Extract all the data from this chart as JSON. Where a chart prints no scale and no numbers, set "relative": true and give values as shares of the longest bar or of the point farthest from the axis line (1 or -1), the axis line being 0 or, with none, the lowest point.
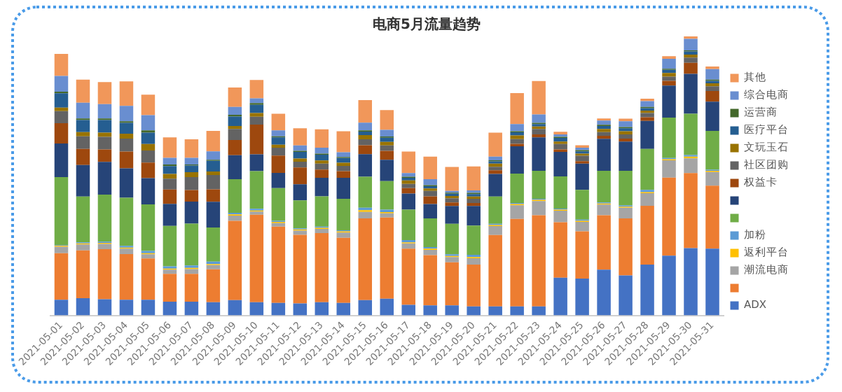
{
  "chart_data": {
    "type": "bar",
    "title": "电商5月流量趋势",
    "stacked": true,
    "relative": true,
    "legend": "right",
    "grid": false,
    "categories": [
      "2021-05-01",
      "2021-05-02",
      "2021-05-03",
      "2021-05-04",
      "2021-05-05",
      "2021-05-06",
      "2021-05-07",
      "2021-05-08",
      "2021-05-09",
      "2021-05-10",
      "2021-05-11",
      "2021-05-12",
      "2021-05-13",
      "2021-05-14",
      "2021-05-15",
      "2021-05-16",
      "2021-05-17",
      "2021-05-18",
      "2021-05-19",
      "2021-05-20",
      "2021-05-21",
      "2021-05-22",
      "2021-05-23",
      "2021-05-24",
      "2021-05-25",
      "2021-05-26",
      "2021-05-27",
      "2021-05-28",
      "2021-05-29",
      "2021-05-30",
      "2021-05-31"
    ],
    "series": [
      {
        "name": "ADX",
        "color": "#4472c4",
        "values": [
          0.056,
          0.062,
          0.058,
          0.056,
          0.056,
          0.049,
          0.049,
          0.047,
          0.055,
          0.047,
          0.045,
          0.043,
          0.047,
          0.045,
          0.055,
          0.06,
          0.038,
          0.036,
          0.036,
          0.032,
          0.032,
          0.032,
          0.032,
          0.135,
          0.132,
          0.164,
          0.143,
          0.182,
          0.214,
          0.241,
          0.239
        ]
      },
      {
        "color": "#ed7d31",
        "values": [
          0.167,
          0.171,
          0.179,
          0.164,
          0.148,
          0.1,
          0.1,
          0.118,
          0.284,
          0.314,
          0.273,
          0.246,
          0.248,
          0.233,
          0.293,
          0.291,
          0.201,
          0.18,
          0.154,
          0.15,
          0.256,
          0.314,
          0.327,
          0.199,
          0.169,
          0.195,
          0.205,
          0.211,
          0.28,
          0.269,
          0.226
        ]
      },
      {
        "name": "潮流电商",
        "color": "#a5a5a5",
        "values": [
          0.023,
          0.021,
          0.019,
          0.019,
          0.015,
          0.015,
          0.017,
          0.015,
          0.019,
          0.011,
          0.013,
          0.015,
          0.015,
          0.019,
          0.023,
          0.015,
          0.019,
          0.019,
          0.019,
          0.023,
          0.032,
          0.049,
          0.051,
          0.041,
          0.034,
          0.038,
          0.038,
          0.045,
          0.062,
          0.053,
          0.049
        ]
      },
      {
        "name": "返利平台",
        "color": "#ffc000",
        "values": [
          0.004,
          0.004,
          0.004,
          0.004,
          0.004,
          0.004,
          0.004,
          0.004,
          0.004,
          0.004,
          0.004,
          0.004,
          0.004,
          0.004,
          0.006,
          0.004,
          0.004,
          0.004,
          0.004,
          0.004,
          0.004,
          0.004,
          0.004,
          0.004,
          0.004,
          0.004,
          0.004,
          0.004,
          0.004,
          0.006,
          0.004
        ]
      },
      {
        "name": "加粉",
        "color": "#5b9bd5",
        "values": [
          0.002,
          0.004,
          0.004,
          0.006,
          0.008,
          0.008,
          0.009,
          0.009,
          0.006,
          0.006,
          0.004,
          0.004,
          0.004,
          0.004,
          0.009,
          0.009,
          0.008,
          0.006,
          0.006,
          0.008,
          0.004,
          0.004,
          0.004,
          0.004,
          0.004,
          0.004,
          0.004,
          0.008,
          0.004,
          0.006,
          0.004
        ]
      },
      {
        "color": "#70ad47",
        "values": [
          0.244,
          0.164,
          0.169,
          0.173,
          0.167,
          0.145,
          0.15,
          0.122,
          0.12,
          0.135,
          0.117,
          0.1,
          0.109,
          0.113,
          0.111,
          0.102,
          0.109,
          0.103,
          0.109,
          0.105,
          0.098,
          0.105,
          0.1,
          0.115,
          0.107,
          0.113,
          0.124,
          0.147,
          0.145,
          0.148,
          0.139
        ]
      },
      {
        "color": "#264478",
        "values": [
          0.12,
          0.113,
          0.117,
          0.105,
          0.094,
          0.079,
          0.079,
          0.092,
          0.086,
          0.06,
          0.055,
          0.058,
          0.066,
          0.075,
          0.081,
          0.077,
          0.058,
          0.051,
          0.064,
          0.07,
          0.081,
          0.098,
          0.12,
          0.088,
          0.094,
          0.115,
          0.105,
          0.1,
          0.115,
          0.143,
          0.105
        ]
      },
      {
        "name": "权益卡",
        "color": "#9e480e",
        "values": [
          0.073,
          0.058,
          0.045,
          0.06,
          0.056,
          0.051,
          0.041,
          0.045,
          0.055,
          0.107,
          0.062,
          0.06,
          0.03,
          0.024,
          0.032,
          0.032,
          0.019,
          0.028,
          0.013,
          0.011,
          0.013,
          0.009,
          0.011,
          0.009,
          0.009,
          0.011,
          0.011,
          0.013,
          0.017,
          0.039,
          0.038
        ]
      },
      {
        "name": "社区团购",
        "color": "#636363",
        "values": [
          0.043,
          0.045,
          0.045,
          0.047,
          0.043,
          0.039,
          0.047,
          0.051,
          0.039,
          0.028,
          0.028,
          0.021,
          0.021,
          0.019,
          0.021,
          0.019,
          0.015,
          0.019,
          0.015,
          0.015,
          0.013,
          0.017,
          0.019,
          0.019,
          0.019,
          0.013,
          0.015,
          0.015,
          0.015,
          0.019,
          0.017
        ]
      },
      {
        "name": "文玩玉石",
        "color": "#997300",
        "values": [
          0.013,
          0.015,
          0.015,
          0.017,
          0.023,
          0.017,
          0.017,
          0.013,
          0.011,
          0.013,
          0.011,
          0.011,
          0.011,
          0.011,
          0.015,
          0.013,
          0.013,
          0.009,
          0.008,
          0.008,
          0.011,
          0.013,
          0.009,
          0.009,
          0.008,
          0.011,
          0.011,
          0.009,
          0.013,
          0.011,
          0.011
        ]
      },
      {
        "name": "医疗平台",
        "color": "#255e91",
        "values": [
          0.051,
          0.043,
          0.045,
          0.039,
          0.041,
          0.028,
          0.024,
          0.038,
          0.034,
          0.03,
          0.026,
          0.024,
          0.021,
          0.017,
          0.013,
          0.015,
          0.009,
          0.008,
          0.008,
          0.009,
          0.008,
          0.011,
          0.009,
          0.013,
          0.008,
          0.011,
          0.011,
          0.009,
          0.011,
          0.011,
          0.009
        ]
      },
      {
        "name": "运营商",
        "color": "#43682b",
        "values": [
          0.006,
          0.006,
          0.006,
          0.006,
          0.008,
          0.006,
          0.004,
          0.004,
          0.006,
          0.006,
          0.004,
          0.004,
          0.004,
          0.004,
          0.004,
          0.004,
          0.004,
          0.004,
          0.004,
          0.004,
          0.004,
          0.004,
          0.004,
          0.004,
          0.004,
          0.004,
          0.004,
          0.004,
          0.004,
          0.004,
          0.004
        ]
      },
      {
        "name": "综合电商",
        "color": "#698ed0",
        "values": [
          0.056,
          0.056,
          0.051,
          0.055,
          0.055,
          0.024,
          0.024,
          0.03,
          0.028,
          0.017,
          0.021,
          0.019,
          0.021,
          0.017,
          0.028,
          0.024,
          0.013,
          0.021,
          0.006,
          0.009,
          0.013,
          0.026,
          0.03,
          0.009,
          0.009,
          0.015,
          0.021,
          0.021,
          0.036,
          0.041,
          0.038
        ]
      },
      {
        "name": "其他",
        "color": "#f1975a",
        "values": [
          0.079,
          0.083,
          0.079,
          0.088,
          0.073,
          0.073,
          0.066,
          0.073,
          0.07,
          0.066,
          0.06,
          0.062,
          0.066,
          0.075,
          0.081,
          0.071,
          0.077,
          0.081,
          0.086,
          0.086,
          0.086,
          0.111,
          0.12,
          0.009,
          0.009,
          0.008,
          0.009,
          0.009,
          0.009,
          0.009,
          0.009
        ]
      }
    ]
  }
}
